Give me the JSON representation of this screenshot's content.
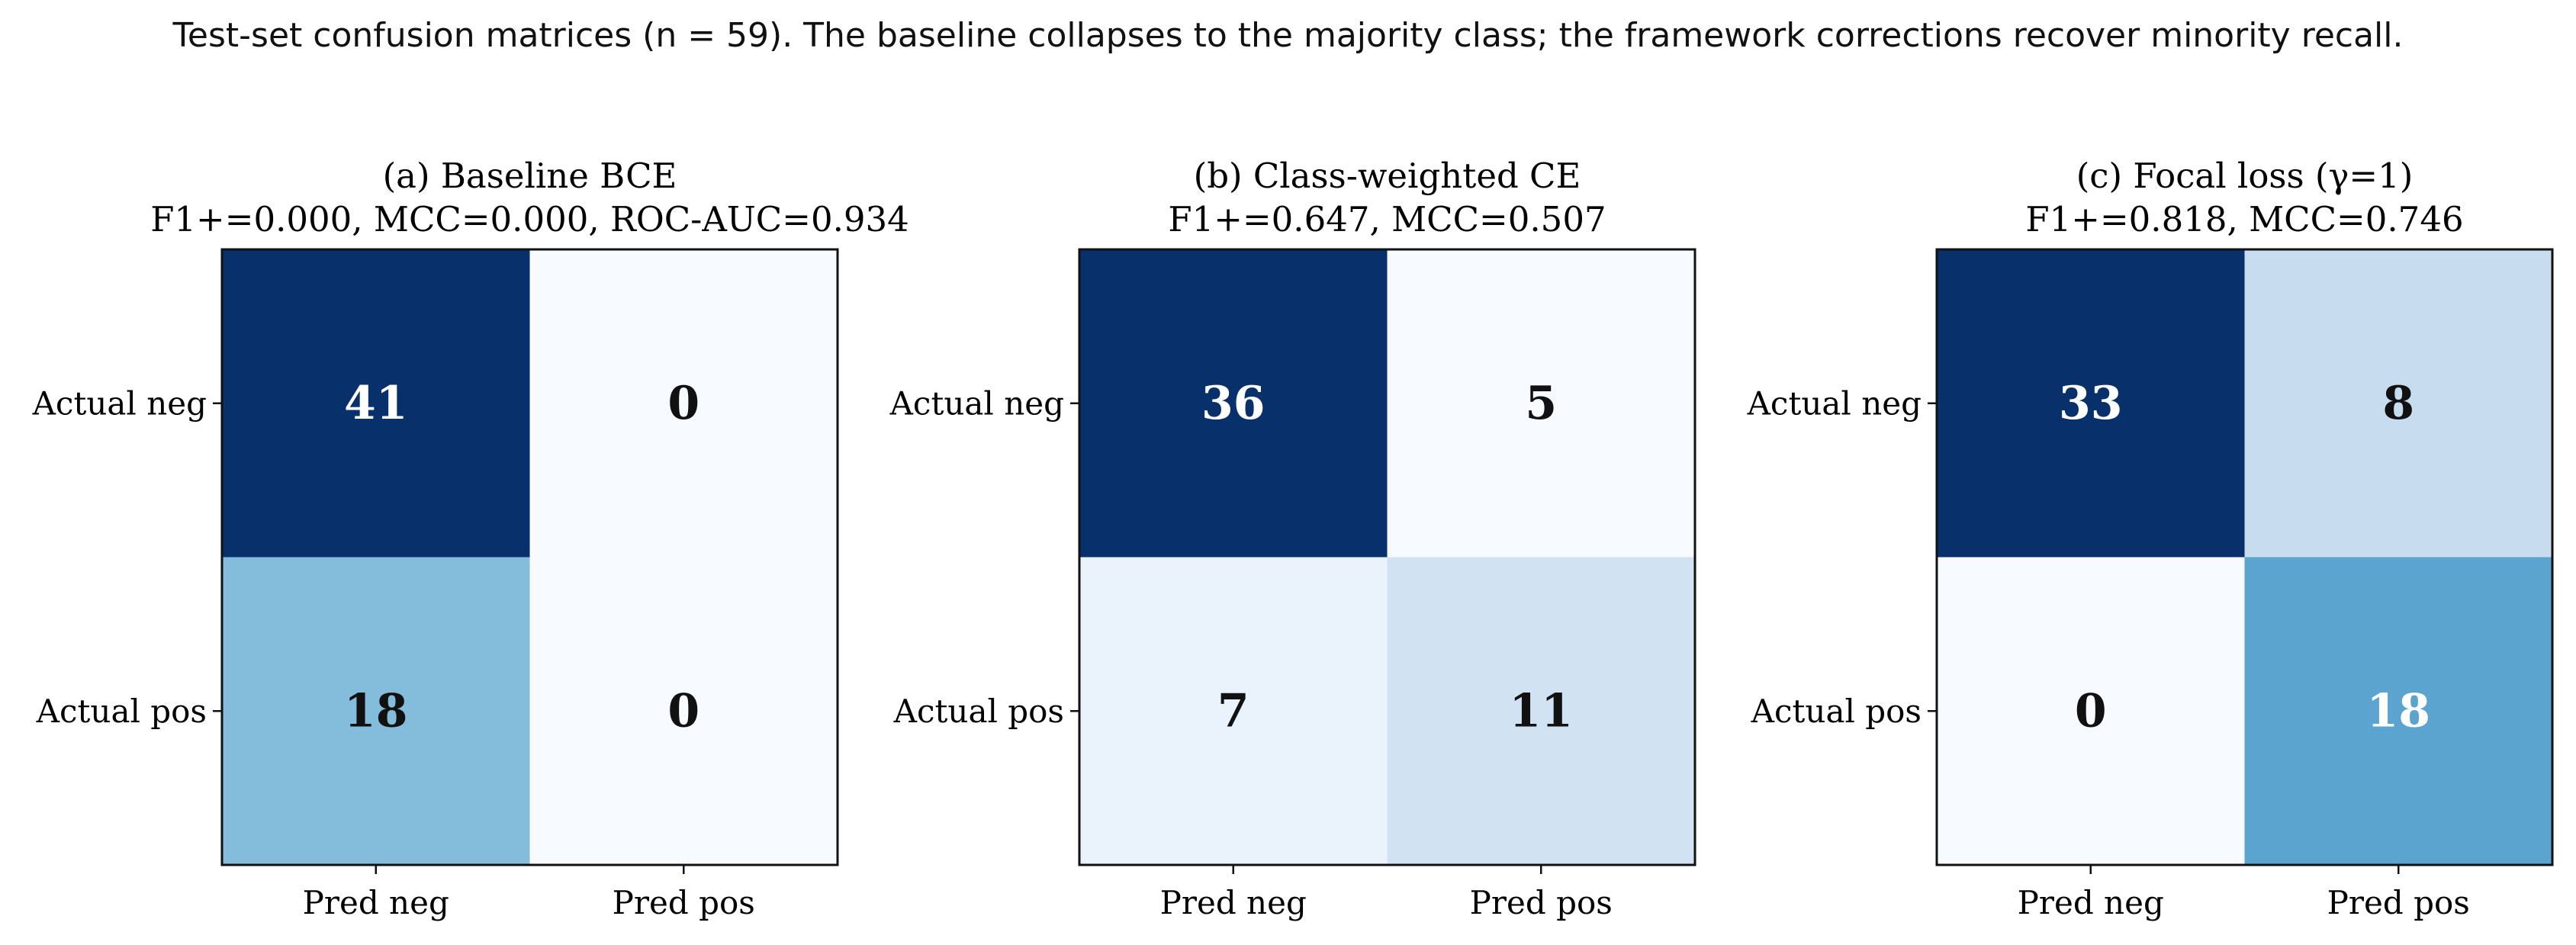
{
  "figure": {
    "caption": "Test-set confusion matrices (n = 59). The baseline collapses to the majority class; the framework corrections recover minority recall."
  },
  "chart_data": [
    {
      "type": "heatmap",
      "title": "(a) Baseline BCE",
      "subtitle": "F1+=0.000, MCC=0.000, ROC-AUC=0.934",
      "row_labels": [
        "Actual neg",
        "Actual pos"
      ],
      "col_labels": [
        "Pred neg",
        "Pred pos"
      ],
      "values": [
        [
          41,
          0
        ],
        [
          18,
          0
        ]
      ],
      "colormap": "Blues"
    },
    {
      "type": "heatmap",
      "title": "(b) Class-weighted CE",
      "subtitle": "F1+=0.647, MCC=0.507",
      "row_labels": [
        "Actual neg",
        "Actual pos"
      ],
      "col_labels": [
        "Pred neg",
        "Pred pos"
      ],
      "values": [
        [
          36,
          5
        ],
        [
          7,
          11
        ]
      ],
      "colormap": "Blues"
    },
    {
      "type": "heatmap",
      "title": "(c) Focal loss (γ=1)",
      "subtitle": "F1+=0.818, MCC=0.746",
      "row_labels": [
        "Actual neg",
        "Actual pos"
      ],
      "col_labels": [
        "Pred neg",
        "Pred pos"
      ],
      "values": [
        [
          33,
          8
        ],
        [
          0,
          18
        ]
      ],
      "colormap": "Blues"
    }
  ]
}
